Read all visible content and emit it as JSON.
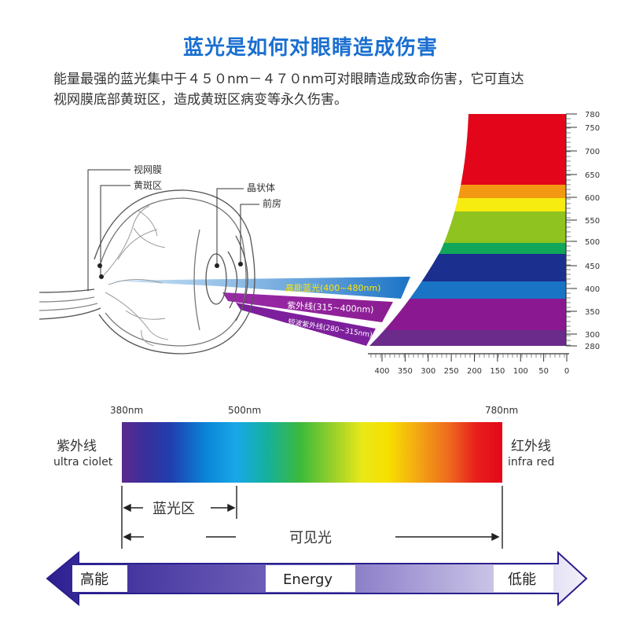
{
  "title": "蓝光是如何对眼睛造成伤害",
  "intro": {
    "line1": "能量最强的蓝光集中于４５０nm－４７０nm可对眼睛造成致命伤害，它可直达",
    "line2": "视网膜底部黄斑区，造成黄斑区病变等永久伤害。"
  },
  "eye_labels": {
    "retina": "视网膜",
    "macula": "黄斑区",
    "lens": "晶状体",
    "anterior": "前房"
  },
  "beams": {
    "blue": "高能蓝光(400~480nm)",
    "uv": "紫外线(315~400nm)",
    "short_uv": "短波紫外线(280~315nm)"
  },
  "right_scale": [
    "780",
    "750",
    "700",
    "650",
    "600",
    "550",
    "500",
    "450",
    "400",
    "350",
    "300",
    "280"
  ],
  "bottom_scale": [
    "400",
    "350",
    "300",
    "250",
    "200",
    "150",
    "100",
    "50",
    "0"
  ],
  "spectrum": {
    "tick_380": "380nm",
    "tick_500": "500nm",
    "tick_780": "780nm",
    "left_cn": "紫外线",
    "left_en": "ultra ciolet",
    "right_cn": "红外线",
    "right_en": "infra red",
    "blue_zone": "蓝光区",
    "visible": "可见光"
  },
  "energy": {
    "high": "高能",
    "label": "Energy",
    "low": "低能"
  },
  "colors": {
    "title": "#1a6fd0",
    "blue_beam": "#1f7fd0",
    "uv_beam": "#7a1f9a",
    "arrow_fill": "#3b2fa0"
  }
}
